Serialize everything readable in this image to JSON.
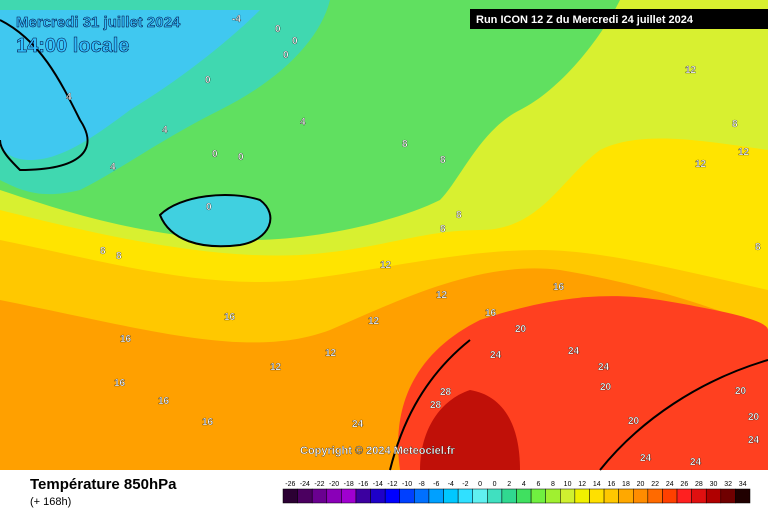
{
  "header": {
    "date": "Mercredi 31 juillet 2024",
    "time": "14:00 locale",
    "run": "Run ICON 12 Z du Mercredi 24 juillet 2024"
  },
  "copyright": "Copyright © 2024 Meteociel.fr",
  "footer": {
    "title": "Température 850hPa",
    "lead": "(+ 168h)"
  },
  "legend": {
    "labels": [
      "-26",
      "-24",
      "-22",
      "-20",
      "-18",
      "-16",
      "-14",
      "-12",
      "-10",
      "-8",
      "-6",
      "-4",
      "-2",
      "0",
      "0",
      "2",
      "4",
      "6",
      "8",
      "10",
      "12",
      "14",
      "16",
      "18",
      "20",
      "22",
      "24",
      "26",
      "28",
      "30",
      "32",
      "34"
    ],
    "colors": [
      "#2b0033",
      "#4b0060",
      "#6a0090",
      "#8a00b8",
      "#a000d0",
      "#3c00a0",
      "#1e00c8",
      "#0000ff",
      "#0040ff",
      "#0070ff",
      "#00a0ff",
      "#00c8ff",
      "#30e0ff",
      "#60f0f0",
      "#40e0c0",
      "#30d890",
      "#40e060",
      "#70f040",
      "#a0f030",
      "#d0f030",
      "#f0f000",
      "#ffe000",
      "#ffc800",
      "#ffa800",
      "#ff8c00",
      "#ff6a00",
      "#ff4000",
      "#ff2020",
      "#e01010",
      "#b00000",
      "#700000",
      "#200000"
    ]
  },
  "contour_labels": [
    "-4",
    "0",
    "0",
    "0",
    "0",
    "4",
    "4",
    "4",
    "0",
    "0",
    "0",
    "4",
    "8",
    "8",
    "8",
    "8",
    "8",
    "8",
    "12",
    "12",
    "12",
    "12",
    "12",
    "12",
    "16",
    "16",
    "16",
    "16",
    "16",
    "16",
    "16",
    "20",
    "24",
    "24",
    "24",
    "28",
    "28",
    "20",
    "20",
    "24",
    "24",
    "24",
    "20",
    "20",
    "24",
    "8",
    "8",
    "12",
    "12"
  ]
}
